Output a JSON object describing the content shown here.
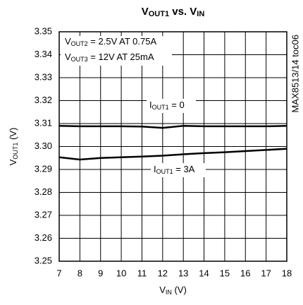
{
  "chart_data": {
    "type": "line",
    "title": [
      "V",
      "OUT1",
      " vs. V",
      "IN"
    ],
    "xlabel": [
      "V",
      "IN",
      " (V)"
    ],
    "ylabel": [
      "V",
      "OUT1",
      " (V)"
    ],
    "annotations": [
      [
        "V",
        "OUT2",
        " = 2.5V AT 0.75A"
      ],
      [
        "V",
        "OUT3",
        " = 12V AT 25mA"
      ]
    ],
    "side_note": "MAX8513/14 toc06",
    "x": [
      7,
      8,
      9,
      10,
      11,
      12,
      13,
      14,
      15,
      16,
      17,
      18
    ],
    "series": [
      {
        "name": [
          "I",
          "OUT1",
          " = 0"
        ],
        "color": "#000000",
        "values": [
          3.309,
          3.3088,
          3.3088,
          3.3088,
          3.3087,
          3.3081,
          3.309,
          3.3088,
          3.3088,
          3.3088,
          3.3088,
          3.309
        ]
      },
      {
        "name": [
          "I",
          "OUT1",
          " = 3A"
        ],
        "color": "#000000",
        "values": [
          3.2953,
          3.2943,
          3.295,
          3.2953,
          3.2956,
          3.296,
          3.2966,
          3.2971,
          3.2975,
          3.298,
          3.2985,
          3.299
        ]
      }
    ],
    "xlim": [
      7,
      18
    ],
    "xticks": [
      7,
      8,
      9,
      10,
      11,
      12,
      13,
      14,
      15,
      16,
      17,
      18
    ],
    "ylim": [
      3.25,
      3.35
    ],
    "yticks": [
      {
        "value": 3.25,
        "label": "3.25"
      },
      {
        "value": 3.26,
        "label": "3.26"
      },
      {
        "value": 3.27,
        "label": "3.27"
      },
      {
        "value": 3.28,
        "label": "3.28"
      },
      {
        "value": 3.29,
        "label": "3.29"
      },
      {
        "value": 3.3,
        "label": "3.30"
      },
      {
        "value": 3.31,
        "label": "3.31"
      },
      {
        "value": 3.32,
        "label": "3.32"
      },
      {
        "value": 3.33,
        "label": "3.33"
      },
      {
        "value": 3.34,
        "label": "3.34"
      },
      {
        "value": 3.35,
        "label": "3.35"
      }
    ],
    "grid": true
  }
}
